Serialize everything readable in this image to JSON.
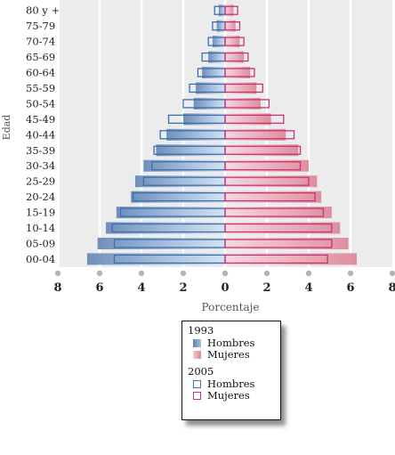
{
  "chart_data": {
    "type": "bar",
    "orientation": "horizontal-population-pyramid",
    "xlabel": "Porcentaje",
    "ylabel": "Edad",
    "xlim": [
      -8,
      8
    ],
    "x_ticks": [
      -8,
      -6,
      -4,
      -2,
      0,
      2,
      4,
      6,
      8
    ],
    "x_tick_labels": [
      "8",
      "6",
      "4",
      "2",
      "0",
      "2",
      "4",
      "6",
      "8"
    ],
    "grid": true,
    "legend_position": "bottom-center",
    "categories": [
      "00-04",
      "05-09",
      "10-14",
      "15-19",
      "20-24",
      "25-29",
      "30-34",
      "35-39",
      "40-44",
      "45-49",
      "50-54",
      "55-59",
      "60-64",
      "65-69",
      "70-74",
      "75-79",
      "80 y +"
    ],
    "series": [
      {
        "name": "Hombres",
        "group": "1993",
        "style": "filled",
        "color": "#7d9cc4",
        "values": [
          6.6,
          6.1,
          5.7,
          5.2,
          4.5,
          4.3,
          3.9,
          3.3,
          2.8,
          2.0,
          1.5,
          1.4,
          1.1,
          0.8,
          0.6,
          0.4,
          0.3
        ]
      },
      {
        "name": "Mujeres",
        "group": "1993",
        "style": "filled",
        "color": "#e3a0ac",
        "values": [
          6.3,
          5.9,
          5.5,
          5.1,
          4.6,
          4.4,
          4.0,
          3.5,
          2.9,
          2.2,
          1.7,
          1.5,
          1.2,
          0.9,
          0.7,
          0.5,
          0.4
        ]
      },
      {
        "name": "Hombres",
        "group": "2005",
        "style": "outline",
        "color": "#3a6fb0",
        "values": [
          5.3,
          5.3,
          5.4,
          5.0,
          4.4,
          3.9,
          3.5,
          3.4,
          3.1,
          2.7,
          2.0,
          1.7,
          1.3,
          1.1,
          0.8,
          0.6,
          0.5
        ]
      },
      {
        "name": "Mujeres",
        "group": "2005",
        "style": "outline",
        "color": "#c8327a",
        "values": [
          4.9,
          5.1,
          5.1,
          4.7,
          4.3,
          4.0,
          3.6,
          3.6,
          3.3,
          2.8,
          2.1,
          1.8,
          1.4,
          1.1,
          0.9,
          0.7,
          0.6
        ]
      }
    ]
  },
  "legend": {
    "groups": [
      {
        "year": "1993",
        "items": [
          {
            "label": "Hombres",
            "style": "filled",
            "color": "#7d9cc4"
          },
          {
            "label": "Mujeres",
            "style": "filled",
            "color": "#e3a0ac"
          }
        ]
      },
      {
        "year": "2005",
        "items": [
          {
            "label": "Hombres",
            "style": "outline",
            "color": "#3a6fb0"
          },
          {
            "label": "Mujeres",
            "style": "outline",
            "color": "#c8327a"
          }
        ]
      }
    ]
  }
}
